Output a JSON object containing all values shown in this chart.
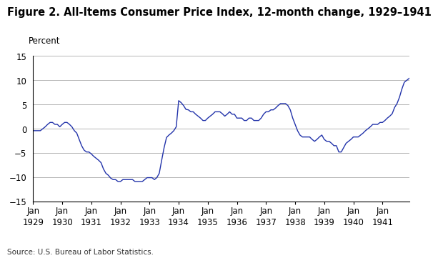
{
  "title": "Figure 2. All-Items Consumer Price Index, 12-month change, 1929–1941",
  "ylabel": "Percent",
  "source": "Source: U.S. Bureau of Labor Statistics.",
  "line_color": "#2233aa",
  "background_color": "#ffffff",
  "ylim": [
    -15,
    15
  ],
  "yticks": [
    -15,
    -10,
    -5,
    0,
    5,
    10,
    15
  ],
  "grid_color": "#aaaaaa",
  "title_fontsize": 10.5,
  "axis_fontsize": 8.5,
  "data": {
    "values": [
      -0.4,
      -0.4,
      -0.4,
      -0.4,
      0.0,
      0.4,
      0.9,
      1.3,
      1.3,
      0.9,
      0.9,
      0.4,
      0.9,
      1.3,
      1.3,
      0.9,
      0.4,
      -0.4,
      -0.9,
      -2.2,
      -3.5,
      -4.4,
      -4.8,
      -4.8,
      -5.2,
      -5.7,
      -6.1,
      -6.5,
      -7.0,
      -8.3,
      -9.2,
      -9.6,
      -10.2,
      -10.5,
      -10.5,
      -10.9,
      -10.9,
      -10.5,
      -10.5,
      -10.5,
      -10.5,
      -10.5,
      -10.9,
      -10.9,
      -10.9,
      -10.9,
      -10.5,
      -10.1,
      -10.1,
      -10.1,
      -10.5,
      -10.1,
      -9.2,
      -6.5,
      -3.9,
      -1.8,
      -1.3,
      -0.9,
      -0.4,
      0.4,
      5.8,
      5.4,
      4.8,
      4.0,
      3.9,
      3.5,
      3.5,
      3.0,
      2.6,
      2.2,
      1.7,
      1.7,
      2.2,
      2.6,
      3.0,
      3.5,
      3.5,
      3.5,
      3.1,
      2.6,
      3.0,
      3.5,
      3.0,
      3.0,
      2.2,
      2.2,
      2.2,
      1.7,
      1.7,
      2.2,
      2.2,
      1.7,
      1.7,
      1.7,
      2.2,
      3.0,
      3.5,
      3.5,
      3.9,
      3.9,
      4.3,
      4.8,
      5.2,
      5.2,
      5.2,
      4.8,
      3.9,
      2.2,
      0.9,
      -0.4,
      -1.3,
      -1.7,
      -1.7,
      -1.7,
      -1.7,
      -2.2,
      -2.6,
      -2.2,
      -1.7,
      -1.3,
      -2.2,
      -2.6,
      -2.6,
      -3.0,
      -3.5,
      -3.5,
      -4.8,
      -4.8,
      -3.9,
      -3.0,
      -2.6,
      -2.2,
      -1.7,
      -1.7,
      -1.7,
      -1.3,
      -0.9,
      -0.4,
      0.0,
      0.4,
      0.9,
      0.9,
      0.9,
      1.3,
      1.3,
      1.7,
      2.2,
      2.6,
      3.1,
      4.4,
      5.2,
      6.5,
      8.2,
      9.6,
      10.0,
      10.4
    ]
  },
  "xtick_positions": [
    0,
    12,
    24,
    36,
    48,
    60,
    72,
    84,
    96,
    108,
    120,
    132,
    144
  ],
  "xtick_labels_line1": [
    "Jan",
    "Jan",
    "Jan",
    "Jan",
    "Jan",
    "Jan",
    "Jan",
    "Jan",
    "Jan",
    "Jan",
    "Jan",
    "Jan",
    "Jan"
  ],
  "xtick_labels_line2": [
    "1929",
    "1930",
    "1931",
    "1932",
    "1933",
    "1934",
    "1935",
    "1936",
    "1937",
    "1938",
    "1939",
    "1940",
    "1941"
  ]
}
